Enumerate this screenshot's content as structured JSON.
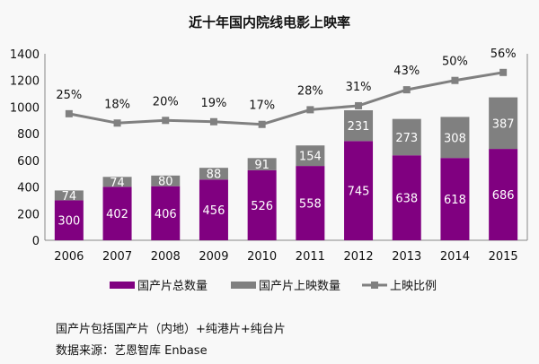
{
  "chart_data": {
    "type": "bar",
    "stacked": true,
    "title": "近十年国内院线电影上映率",
    "categories": [
      "2006",
      "2007",
      "2008",
      "2009",
      "2010",
      "2011",
      "2012",
      "2013",
      "2014",
      "2015"
    ],
    "series": [
      {
        "name": "国产片总数量",
        "color": "#800080",
        "values": [
          300,
          402,
          406,
          456,
          526,
          558,
          745,
          638,
          618,
          686
        ]
      },
      {
        "name": "国产片上映数量",
        "color": "#808080",
        "values": [
          74,
          74,
          80,
          88,
          91,
          154,
          231,
          273,
          308,
          387
        ]
      }
    ],
    "line_series": {
      "name": "上映比例",
      "color": "#808080",
      "axis": "secondary",
      "values": [
        25,
        18,
        20,
        19,
        17,
        28,
        31,
        43,
        50,
        56
      ],
      "labels": [
        "25%",
        "18%",
        "20%",
        "19%",
        "17%",
        "28%",
        "31%",
        "43%",
        "50%",
        "56%"
      ]
    },
    "ylim": [
      0,
      1400
    ],
    "yticks": [
      "0",
      "200",
      "400",
      "600",
      "800",
      "1000",
      "1200",
      "1400"
    ],
    "y2lim": [
      -70,
      70
    ],
    "grid": false,
    "legend": "bottom"
  },
  "notes": {
    "composition": "国产片包括国产片（内地）+纯港片+纯台片",
    "source": "数据来源：艺恩智库 Enbase"
  }
}
